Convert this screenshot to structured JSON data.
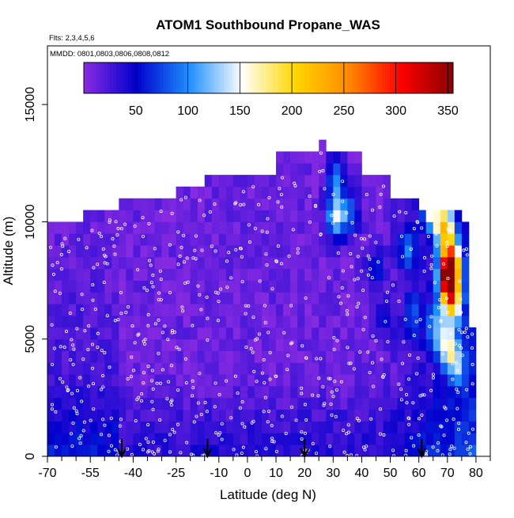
{
  "chart_data": {
    "type": "heatmap",
    "title": "ATOM1 Southbound Propane_WAS",
    "subtitle_flights": "Flts: 2,3,4,5,6",
    "subtitle_dates": "MMDD: 0801,0803,0806,0808,0812",
    "xlabel": "Latitude (deg N)",
    "ylabel": "Altitude (m)",
    "xlim": [
      -70,
      85
    ],
    "ylim": [
      0,
      17500
    ],
    "xticks": [
      -70,
      -55,
      -40,
      -25,
      -10,
      0,
      10,
      20,
      30,
      40,
      50,
      60,
      70,
      80
    ],
    "xticks_labeled": [
      "-70",
      "-55",
      "-40",
      "-25",
      "-10",
      "0",
      "10",
      "20",
      "30",
      "40",
      "50",
      "60",
      "70",
      "80"
    ],
    "yticks": [
      0,
      5000,
      10000,
      15000
    ],
    "ytick_labels": [
      "0",
      "5000",
      "10000",
      "15000"
    ],
    "colorbar": {
      "range": [
        0,
        355
      ],
      "tick_values": [
        50,
        100,
        150,
        200,
        250,
        300,
        350
      ],
      "tick_labels": [
        "50",
        "100",
        "150",
        "200",
        "250",
        "300",
        "350"
      ],
      "colors": [
        "#8A2BE2",
        "#0000CD",
        "#1E90FF",
        "#FFFFFF",
        "#FFD700",
        "#FF8C00",
        "#FF0000",
        "#8B0000"
      ]
    },
    "ceiling_profile": [
      {
        "lat": -70,
        "alt": 10000
      },
      {
        "lat": -57,
        "alt": 10000
      },
      {
        "lat": -57,
        "alt": 10500
      },
      {
        "lat": -45,
        "alt": 10500
      },
      {
        "lat": -45,
        "alt": 11000
      },
      {
        "lat": -25,
        "alt": 11000
      },
      {
        "lat": -25,
        "alt": 11500
      },
      {
        "lat": -15,
        "alt": 11500
      },
      {
        "lat": -15,
        "alt": 12000
      },
      {
        "lat": 10,
        "alt": 12000
      },
      {
        "lat": 10,
        "alt": 12600
      },
      {
        "lat": 25,
        "alt": 12600
      },
      {
        "lat": 25,
        "alt": 13400
      },
      {
        "lat": 27,
        "alt": 13400
      },
      {
        "lat": 27,
        "alt": 12600
      },
      {
        "lat": 40,
        "alt": 12600
      },
      {
        "lat": 40,
        "alt": 12000
      },
      {
        "lat": 50,
        "alt": 12000
      },
      {
        "lat": 50,
        "alt": 11000
      },
      {
        "lat": 60,
        "alt": 11000
      },
      {
        "lat": 60,
        "alt": 10500
      },
      {
        "lat": 75,
        "alt": 10500
      },
      {
        "lat": 75,
        "alt": 10000
      },
      {
        "lat": 78,
        "alt": 10000
      },
      {
        "lat": 78,
        "alt": 5500
      },
      {
        "lat": 80,
        "alt": 5500
      },
      {
        "lat": 80,
        "alt": 0
      }
    ],
    "hotspots": [
      {
        "lat": 69,
        "alt": 9800,
        "value": 220
      },
      {
        "lat": 71,
        "alt": 8200,
        "value": 340
      },
      {
        "lat": 70,
        "alt": 7400,
        "value": 260
      },
      {
        "lat": 72,
        "alt": 6600,
        "value": 190
      },
      {
        "lat": 70,
        "alt": 4800,
        "value": 140
      },
      {
        "lat": 73,
        "alt": 4000,
        "value": 130
      },
      {
        "lat": 64,
        "alt": 10500,
        "value": 150
      },
      {
        "lat": 56,
        "alt": 8800,
        "value": 110
      },
      {
        "lat": 58,
        "alt": 6000,
        "value": 100
      },
      {
        "lat": 66,
        "alt": 5500,
        "value": 120
      },
      {
        "lat": 31,
        "alt": 10200,
        "value": 170
      },
      {
        "lat": 31,
        "alt": 11800,
        "value": 120
      },
      {
        "lat": 36,
        "alt": 10400,
        "value": 105
      },
      {
        "lat": 45,
        "alt": 8000,
        "value": 95
      },
      {
        "lat": 48,
        "alt": 5800,
        "value": 70
      }
    ],
    "arrows_lat": [
      -44,
      -14,
      20,
      61
    ]
  }
}
